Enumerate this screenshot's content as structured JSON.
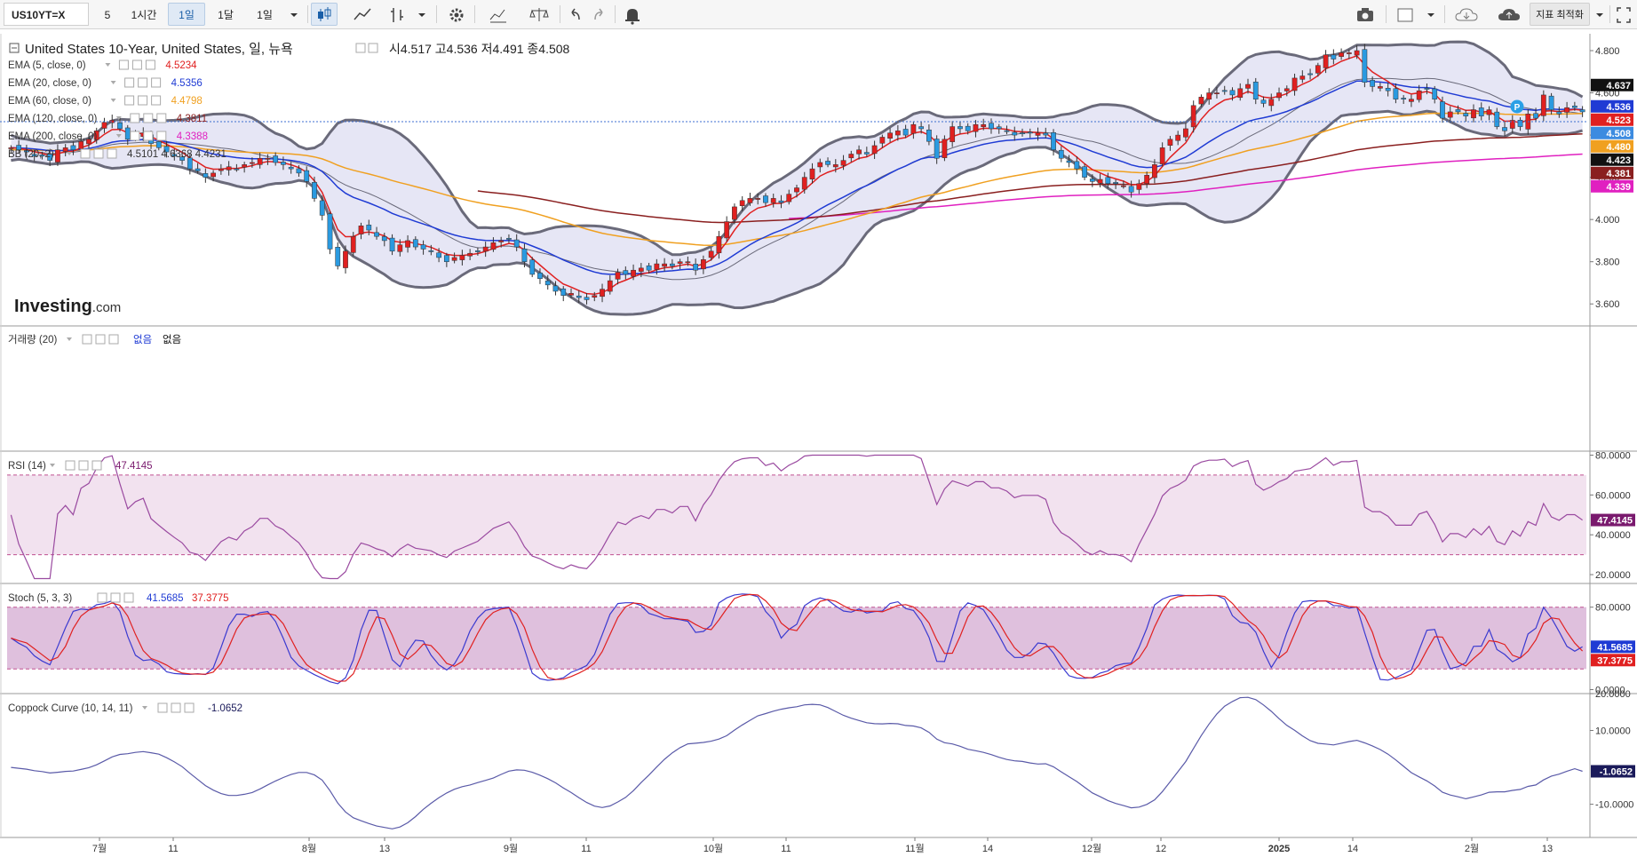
{
  "toolbar": {
    "symbol": "US10YT=X",
    "intervals": [
      "5",
      "1시간",
      "1일",
      "1달",
      "1일"
    ],
    "active_interval": 2,
    "optimize_label": "지표 최적화"
  },
  "price_legend": {
    "title": "United States 10-Year, United States, 일, 뉴욕",
    "ohlc": "시4.517   고4.536   저4.491   종4.508",
    "indicators": [
      {
        "label": "EMA (5, close, 0)",
        "value": "4.5234",
        "color": "#e02020"
      },
      {
        "label": "EMA (20, close, 0)",
        "value": "4.5356",
        "color": "#1f3bd4"
      },
      {
        "label": "EMA (60, close, 0)",
        "value": "4.4798",
        "color": "#f0a020"
      },
      {
        "label": "EMA (120, close, 0)",
        "value": "4.3811",
        "color": "#8a1f1f"
      },
      {
        "label": "EMA (200, close, 0)",
        "value": "4.3388",
        "color": "#e020c0"
      },
      {
        "label": "BB (20, 2)",
        "value": "4.5101   4.6368   4.4231",
        "color": "#333333"
      }
    ]
  },
  "volume_legend": {
    "label": "거래량 (20)",
    "v1": "없음",
    "v2": "없음"
  },
  "rsi_legend": {
    "label": "RSI (14)",
    "value": "47.4145"
  },
  "stoch_legend": {
    "label": "Stoch (5, 3, 3)",
    "k": "41.5685",
    "d": "37.3775"
  },
  "coppock_legend": {
    "label": "Coppock Curve (10, 14, 11)",
    "value": "-1.0652"
  },
  "watermark": "Investing",
  "watermark_suffix": ".com",
  "price_tags": [
    {
      "text": "4.637",
      "color": "#111111"
    },
    {
      "text": "4.536",
      "color": "#1f3bd4"
    },
    {
      "text": "4.523",
      "color": "#e02020"
    },
    {
      "text": "4.508",
      "color": "#3c8be0"
    },
    {
      "text": "4.480",
      "color": "#f0a020"
    },
    {
      "text": "4.423",
      "color": "#111111"
    },
    {
      "text": "4.381",
      "color": "#8a1f1f"
    },
    {
      "text": "4.339",
      "color": "#e020c0"
    }
  ],
  "chart_data": [
    {
      "type": "candlestick",
      "title": "United States 10-Year, United States, 일, 뉴욕",
      "x_ticks": [
        "7월",
        "11",
        "8월",
        "13",
        "9월",
        "11",
        "10월",
        "11",
        "11월",
        "14",
        "12월",
        "12",
        "2025",
        "14",
        "2월",
        "13"
      ],
      "y_ticks": [
        "3.600",
        "3.800",
        "4.000",
        "4.200",
        "4.400",
        "4.600",
        "4.800"
      ],
      "ylim": [
        3.5,
        4.88
      ],
      "close": [
        4.34,
        4.33,
        4.32,
        4.3,
        4.3,
        4.28,
        4.33,
        4.34,
        4.33,
        4.37,
        4.38,
        4.42,
        4.46,
        4.47,
        4.43,
        4.38,
        4.4,
        4.41,
        4.36,
        4.34,
        4.32,
        4.3,
        4.28,
        4.24,
        4.23,
        4.2,
        4.22,
        4.24,
        4.25,
        4.24,
        4.26,
        4.27,
        4.29,
        4.29,
        4.27,
        4.26,
        4.24,
        4.22,
        4.18,
        4.1,
        4.02,
        3.86,
        3.78,
        3.85,
        3.92,
        3.97,
        3.95,
        3.92,
        3.9,
        3.85,
        3.88,
        3.9,
        3.87,
        3.86,
        3.85,
        3.82,
        3.8,
        3.82,
        3.83,
        3.84,
        3.85,
        3.87,
        3.89,
        3.9,
        3.91,
        3.87,
        3.8,
        3.74,
        3.72,
        3.69,
        3.66,
        3.64,
        3.65,
        3.63,
        3.62,
        3.64,
        3.67,
        3.71,
        3.75,
        3.74,
        3.76,
        3.77,
        3.76,
        3.79,
        3.79,
        3.78,
        3.8,
        3.8,
        3.76,
        3.81,
        3.85,
        3.92,
        3.99,
        4.06,
        4.09,
        4.1,
        4.1,
        4.08,
        4.1,
        4.08,
        4.12,
        4.15,
        4.2,
        4.24,
        4.27,
        4.26,
        4.26,
        4.28,
        4.31,
        4.33,
        4.31,
        4.35,
        4.39,
        4.41,
        4.42,
        4.4,
        4.45,
        4.43,
        4.37,
        4.29,
        4.38,
        4.44,
        4.43,
        4.42,
        4.45,
        4.45,
        4.43,
        4.43,
        4.42,
        4.4,
        4.41,
        4.41,
        4.41,
        4.4,
        4.33,
        4.29,
        4.27,
        4.24,
        4.2,
        4.18,
        4.19,
        4.17,
        4.17,
        4.16,
        4.13,
        4.17,
        4.21,
        4.26,
        4.34,
        4.38,
        4.4,
        4.43,
        4.54,
        4.58,
        4.6,
        4.6,
        4.61,
        4.59,
        4.62,
        4.64,
        4.57,
        4.55,
        4.57,
        4.6,
        4.62,
        4.67,
        4.68,
        4.69,
        4.73,
        4.78,
        4.76,
        4.79,
        4.79,
        4.8,
        4.65,
        4.63,
        4.63,
        4.61,
        4.57,
        4.57,
        4.57,
        4.61,
        4.62,
        4.57,
        4.48,
        4.51,
        4.51,
        4.49,
        4.52,
        4.49,
        4.52,
        4.44,
        4.42,
        4.47,
        4.44,
        4.5,
        4.48,
        4.59,
        4.52,
        4.5,
        4.53,
        4.53,
        4.51
      ],
      "series": [
        {
          "name": "EMA (5, close, 0)",
          "last": 4.5234
        },
        {
          "name": "EMA (20, close, 0)",
          "last": 4.5356
        },
        {
          "name": "EMA (60, close, 0)",
          "last": 4.4798
        },
        {
          "name": "EMA (120, close, 0)",
          "last": 4.3811
        },
        {
          "name": "EMA (200, close, 0)",
          "last": 4.3388
        },
        {
          "name": "BB (20, 2)",
          "last": [
            4.5101,
            4.6368,
            4.4231
          ]
        }
      ]
    },
    {
      "type": "line",
      "title": "RSI (14)",
      "y_ticks": [
        "20.0000",
        "40.0000",
        "60.0000",
        "80.0000"
      ],
      "ylim": [
        16,
        82
      ],
      "bands": [
        30,
        70
      ],
      "last": 47.4145
    },
    {
      "type": "line",
      "title": "Stoch (5, 3, 3)",
      "y_ticks": [
        "0.0000",
        "80.0000"
      ],
      "ylim": [
        -3,
        103
      ],
      "bands": [
        20,
        80
      ],
      "last_k": 41.5685,
      "last_d": 37.3775
    },
    {
      "type": "line",
      "title": "Coppock Curve (10, 14, 11)",
      "y_ticks": [
        "-10.0000",
        "10.0000",
        "20.0000"
      ],
      "ylim": [
        -19,
        20
      ],
      "last": -1.0652
    }
  ]
}
